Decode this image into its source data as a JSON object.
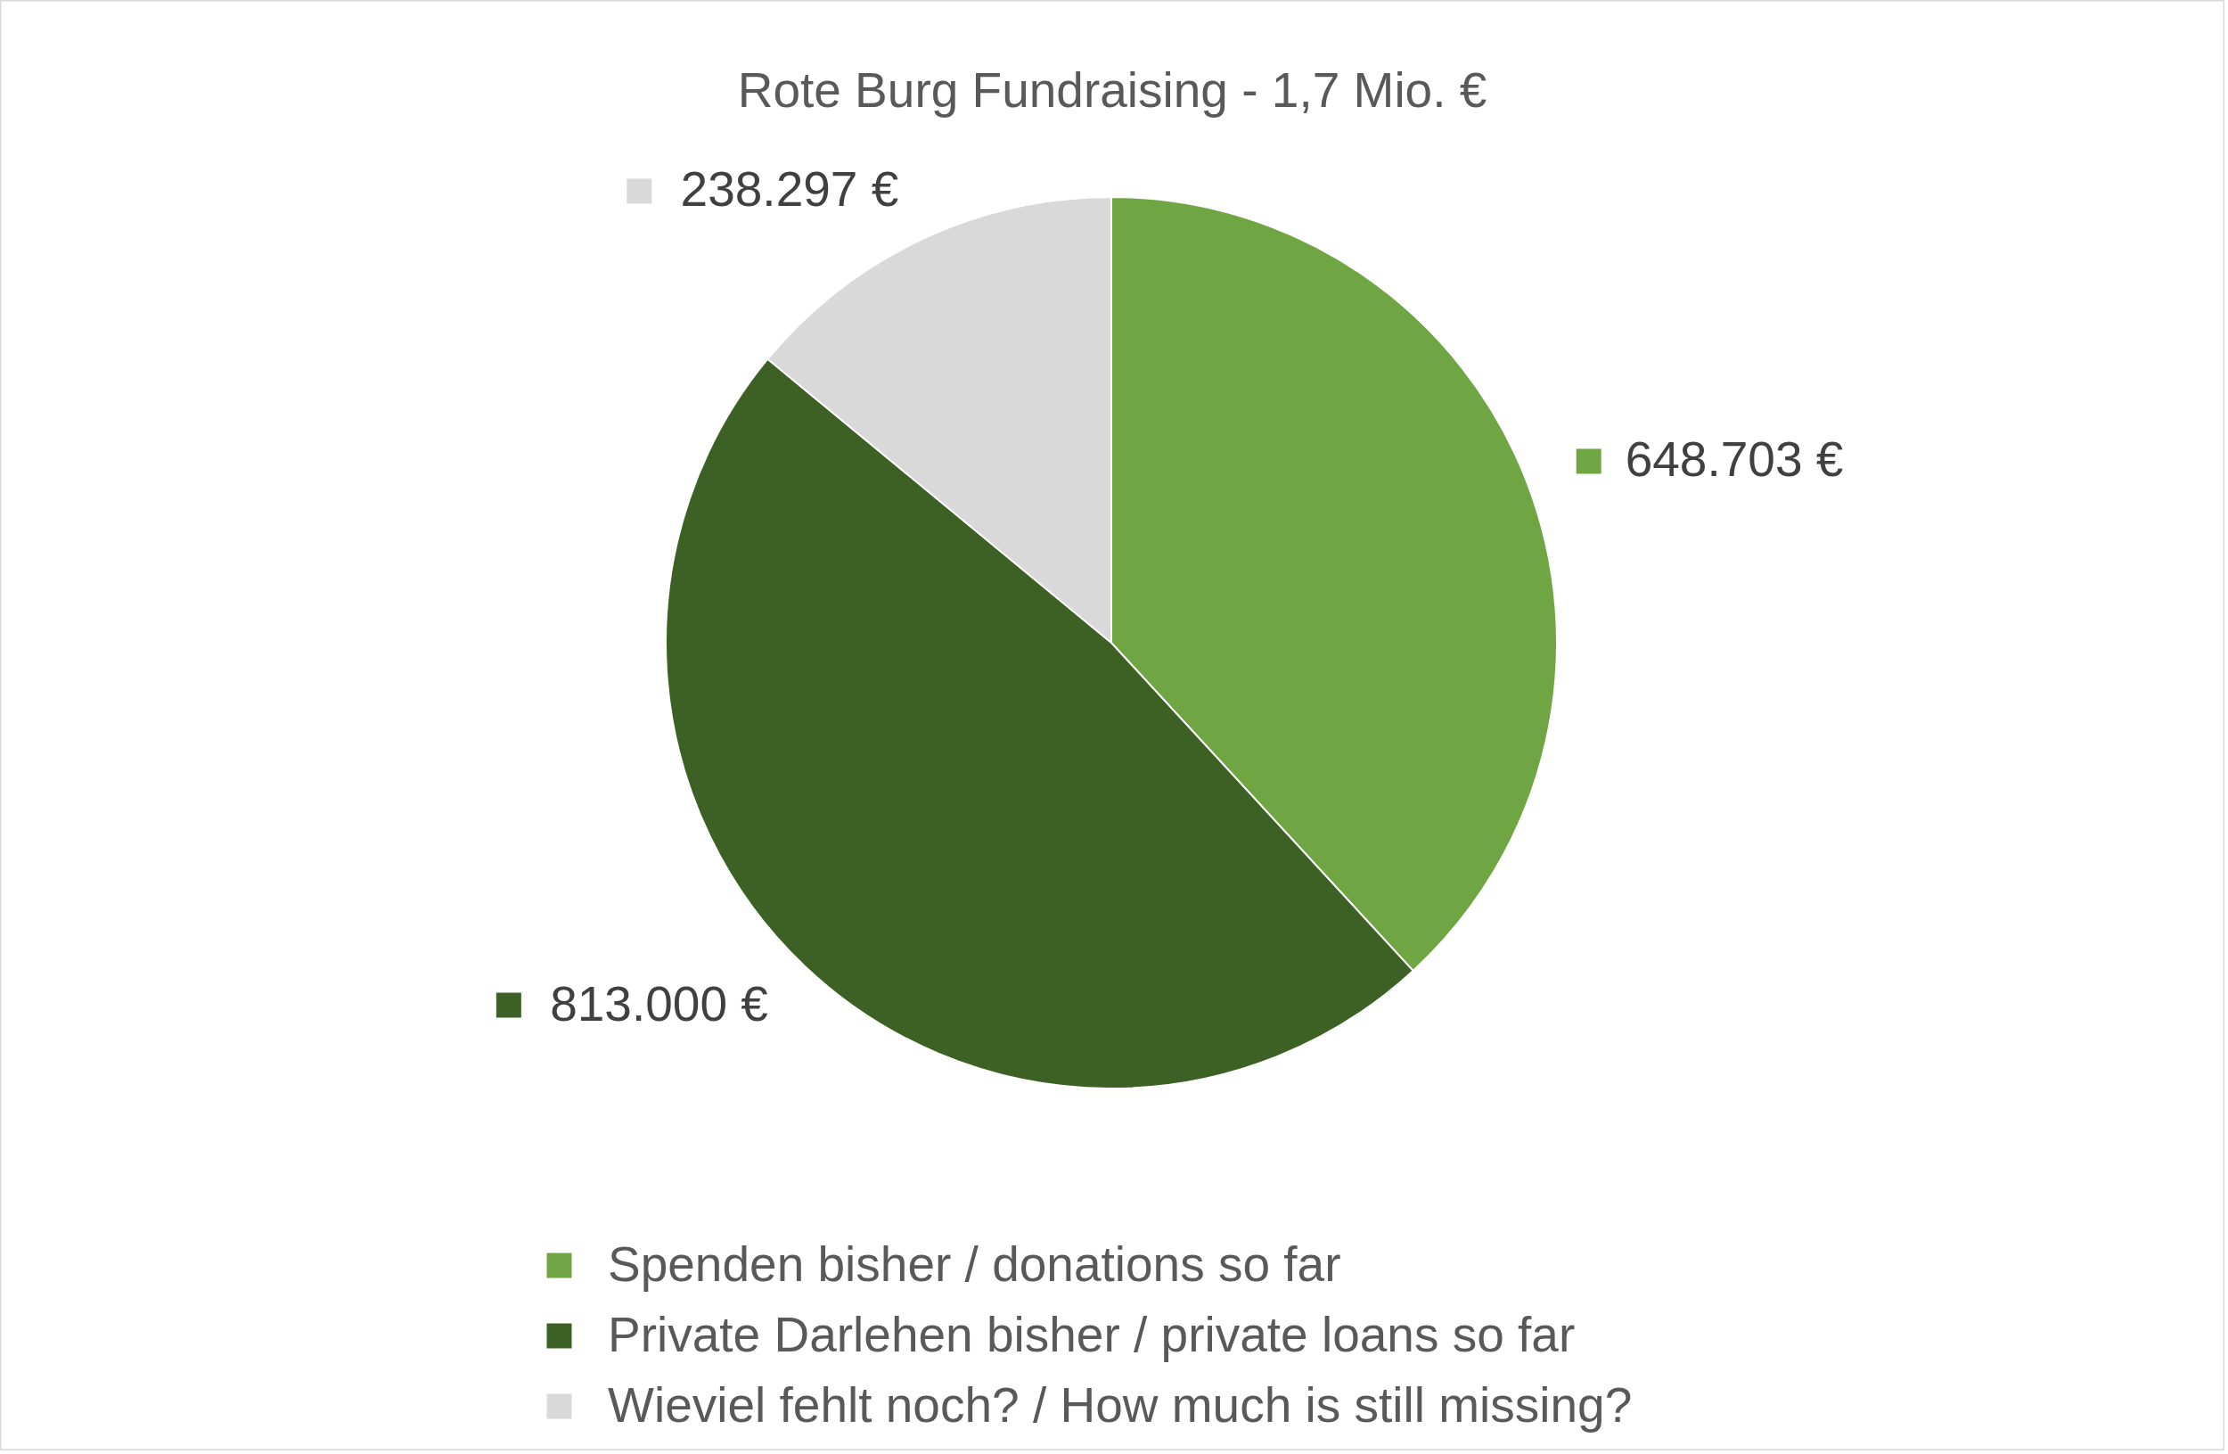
{
  "chart_data": {
    "type": "pie",
    "title": "Rote Burg Fundraising - 1,7 Mio. €",
    "categories": [
      "Spenden bisher / donations so far",
      "Private Darlehen bisher / private loans so far",
      "Wieviel fehlt noch? / How much is still missing?"
    ],
    "values": [
      648703,
      813000,
      238297
    ],
    "colors": [
      "#70a544",
      "#3d6124",
      "#d9d9d9"
    ],
    "value_labels": [
      "648.703 €",
      "813.000 €",
      "238.297 €"
    ],
    "legend": "bottom"
  }
}
